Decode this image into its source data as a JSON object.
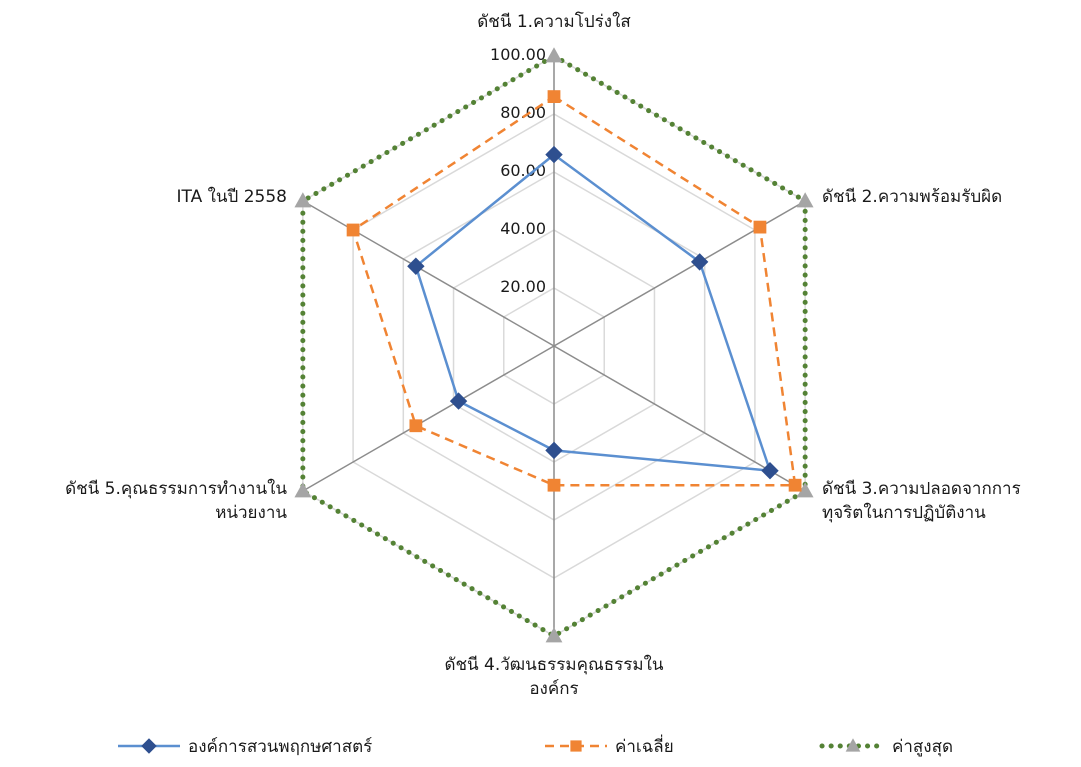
{
  "chart_data": {
    "type": "radar",
    "title": "",
    "axes": [
      [
        "ดัชนี 1.ความโปร่งใส"
      ],
      [
        "ดัชนี 2.ความพร้อมรับผิด"
      ],
      [
        "ดัชนี 3.ความปลอดจากการ",
        "ทุจริตในการปฏิบัติงาน"
      ],
      [
        "ดัชนี 4.วัฒนธรรมคุณธรรมใน",
        "องค์กร"
      ],
      [
        "ดัชนี 5.คุณธรรมการทำงานใน",
        "หน่วยงาน"
      ],
      [
        "ITA ในปี 2558"
      ]
    ],
    "ticks": [
      "20.00",
      "40.00",
      "60.00",
      "80.00",
      "100.00"
    ],
    "range": [
      0,
      100
    ],
    "grid": true,
    "legend_position": "bottom",
    "series": [
      {
        "name": "องค์การสวนพฤกษศาสตร์",
        "color": "#5b8fd0",
        "marker": "diamond",
        "dash": "solid",
        "values": [
          66,
          58,
          86,
          36,
          38,
          55
        ]
      },
      {
        "name": "ค่าเฉลี่ย",
        "color": "#f08433",
        "marker": "square",
        "dash": "dashed",
        "values": [
          86,
          82,
          96,
          48,
          55,
          80
        ]
      },
      {
        "name": "ค่าสูงสุด",
        "color": "#548235",
        "marker": "triangle",
        "dash": "dotted",
        "values": [
          100,
          100,
          100,
          100,
          100,
          100
        ]
      }
    ]
  }
}
